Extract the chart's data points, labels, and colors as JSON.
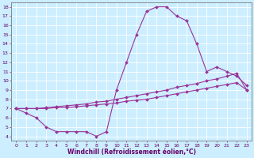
{
  "xlabel": "Windchill (Refroidissement éolien,°C)",
  "xlim": [
    -0.5,
    23.5
  ],
  "ylim": [
    3.5,
    18.5
  ],
  "xticks": [
    0,
    1,
    2,
    3,
    4,
    5,
    6,
    7,
    8,
    9,
    10,
    11,
    12,
    13,
    14,
    15,
    16,
    17,
    18,
    19,
    20,
    21,
    22,
    23
  ],
  "yticks": [
    4,
    5,
    6,
    7,
    8,
    9,
    10,
    11,
    12,
    13,
    14,
    15,
    16,
    17,
    18
  ],
  "background_color": "#cceeff",
  "grid_color": "#ffffff",
  "line_color": "#993399",
  "line1_x": [
    0,
    1,
    2,
    3,
    4,
    5,
    6,
    7,
    8,
    9,
    10,
    11,
    12,
    13,
    14,
    15,
    16,
    17,
    18,
    19,
    20,
    21,
    22,
    23
  ],
  "line1_y": [
    7.0,
    6.5,
    6.0,
    5.0,
    4.5,
    4.5,
    4.5,
    4.5,
    4.0,
    4.5,
    9.0,
    12.0,
    15.0,
    17.5,
    18.0,
    18.0,
    17.0,
    16.5,
    14.0,
    11.0,
    11.5,
    11.0,
    10.5,
    9.5
  ],
  "line2_x": [
    0,
    1,
    2,
    3,
    4,
    5,
    6,
    7,
    8,
    9,
    10,
    11,
    12,
    13,
    14,
    15,
    16,
    17,
    18,
    19,
    20,
    21,
    22,
    23
  ],
  "line2_y": [
    7.0,
    7.0,
    7.0,
    7.1,
    7.2,
    7.3,
    7.4,
    7.5,
    7.7,
    7.8,
    8.0,
    8.2,
    8.4,
    8.6,
    8.8,
    9.0,
    9.3,
    9.5,
    9.7,
    10.0,
    10.2,
    10.5,
    10.8,
    9.0
  ],
  "line3_x": [
    0,
    1,
    2,
    3,
    4,
    5,
    6,
    7,
    8,
    9,
    10,
    11,
    12,
    13,
    14,
    15,
    16,
    17,
    18,
    19,
    20,
    21,
    22,
    23
  ],
  "line3_y": [
    7.0,
    7.0,
    7.0,
    7.0,
    7.1,
    7.1,
    7.2,
    7.3,
    7.4,
    7.5,
    7.6,
    7.8,
    7.9,
    8.0,
    8.2,
    8.4,
    8.6,
    8.8,
    9.0,
    9.2,
    9.4,
    9.6,
    9.8,
    9.0
  ],
  "marker": "D",
  "markersize": 2.0,
  "linewidth": 0.8,
  "tick_fontsize": 4.5,
  "label_fontsize": 5.5,
  "axis_color": "#660066",
  "spine_color": "#666666"
}
